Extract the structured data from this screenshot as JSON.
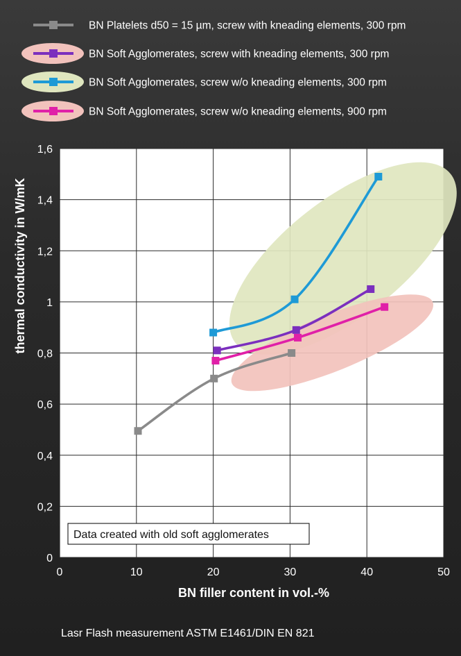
{
  "chart_data": {
    "type": "line",
    "xlabel": "BN filler content in vol.-%",
    "ylabel": "thermal conductivity in W/mK",
    "xlim": [
      0,
      50
    ],
    "ylim": [
      0,
      1.6
    ],
    "xticks": [
      0,
      10,
      20,
      30,
      40,
      50
    ],
    "xtick_labels": [
      "0",
      "10",
      "20",
      "30",
      "40",
      "50"
    ],
    "yticks": [
      0,
      0.2,
      0.4,
      0.6,
      0.8,
      1.0,
      1.2,
      1.4,
      1.6
    ],
    "ytick_labels": [
      "0",
      "0,2",
      "0,4",
      "0,6",
      "0,8",
      "1",
      "1,2",
      "1,4",
      "1,6"
    ],
    "grid": true,
    "legend_position": "top",
    "series": [
      {
        "name": "BN Platelets d50 = 15 µm, screw with kneading elements, 300 rpm",
        "color": "#8a8a8a",
        "legend_highlight": null,
        "x": [
          10.2,
          20.1,
          30.2
        ],
        "y": [
          0.495,
          0.7,
          0.8
        ]
      },
      {
        "name": "BN Soft Agglomerates, screw with kneading elements, 300 rpm",
        "color": "#7b2fbe",
        "legend_highlight": "#f2c2bc",
        "x": [
          20.5,
          30.8,
          40.5
        ],
        "y": [
          0.81,
          0.89,
          1.05
        ]
      },
      {
        "name": "BN Soft Agglomerates, screw w/o kneading elements, 300 rpm",
        "color": "#1e9ad6",
        "legend_highlight": "#dfe6bf",
        "x": [
          20.0,
          30.6,
          41.5
        ],
        "y": [
          0.88,
          1.01,
          1.49
        ]
      },
      {
        "name": "BN Soft Agglomerates, screw w/o kneading elements, 900 rpm",
        "color": "#e020a8",
        "legend_highlight": "#f2c2bc",
        "x": [
          20.3,
          31.0,
          42.3
        ],
        "y": [
          0.77,
          0.86,
          0.98
        ]
      }
    ],
    "highlight_ellipses": [
      {
        "color": "#dfe6bf",
        "center": [
          36.9,
          1.17
        ],
        "rx": 17.8,
        "ry": 0.23,
        "rotation_deg": -38
      },
      {
        "color": "#f2c2bc",
        "center": [
          35.5,
          0.84
        ],
        "rx": 14.1,
        "ry": 0.11,
        "rotation_deg": -22
      }
    ],
    "annotation": "Data created with old soft agglomerates"
  },
  "footer": "Lasr Flash measurement ASTM E1461/DIN EN 821"
}
